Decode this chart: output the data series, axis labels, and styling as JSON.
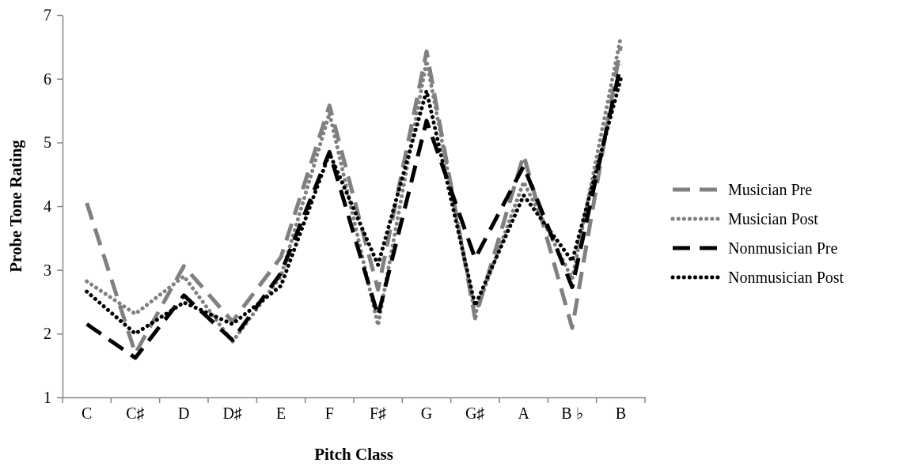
{
  "chart_data": {
    "type": "line",
    "xlabel": "Pitch Class",
    "ylabel": "Probe Tone Rating",
    "categories": [
      "C",
      "C♯",
      "D",
      "D♯",
      "E",
      "F",
      "F♯",
      "G",
      "G♯",
      "A",
      "B ♭",
      "B"
    ],
    "ylim": [
      1,
      7
    ],
    "yticks": [
      1,
      2,
      3,
      4,
      5,
      6,
      7
    ],
    "grid": false,
    "legend": "right",
    "marker": "none",
    "series": [
      {
        "name": "Musician Pre",
        "color": "#808080",
        "line_style": "dashed",
        "values": [
          4.05,
          1.69,
          3.06,
          2.19,
          3.2,
          5.58,
          2.69,
          6.43,
          2.24,
          4.8,
          2.09,
          6.51
        ]
      },
      {
        "name": "Musician Post",
        "color": "#808080",
        "line_style": "dotted",
        "values": [
          2.82,
          2.31,
          2.9,
          1.87,
          2.9,
          5.46,
          2.13,
          6.28,
          2.31,
          4.38,
          2.86,
          6.65
        ]
      },
      {
        "name": "Nonmusician Pre",
        "color": "#000000",
        "line_style": "dashed",
        "values": [
          2.15,
          1.62,
          2.6,
          1.9,
          2.95,
          4.85,
          2.28,
          5.34,
          3.18,
          4.63,
          2.73,
          6.22
        ]
      },
      {
        "name": "Nonmusician Post",
        "color": "#000000",
        "line_style": "dotted",
        "values": [
          2.66,
          2.0,
          2.49,
          2.15,
          2.75,
          4.83,
          3.08,
          5.81,
          2.44,
          4.17,
          3.14,
          6.0
        ]
      }
    ]
  }
}
